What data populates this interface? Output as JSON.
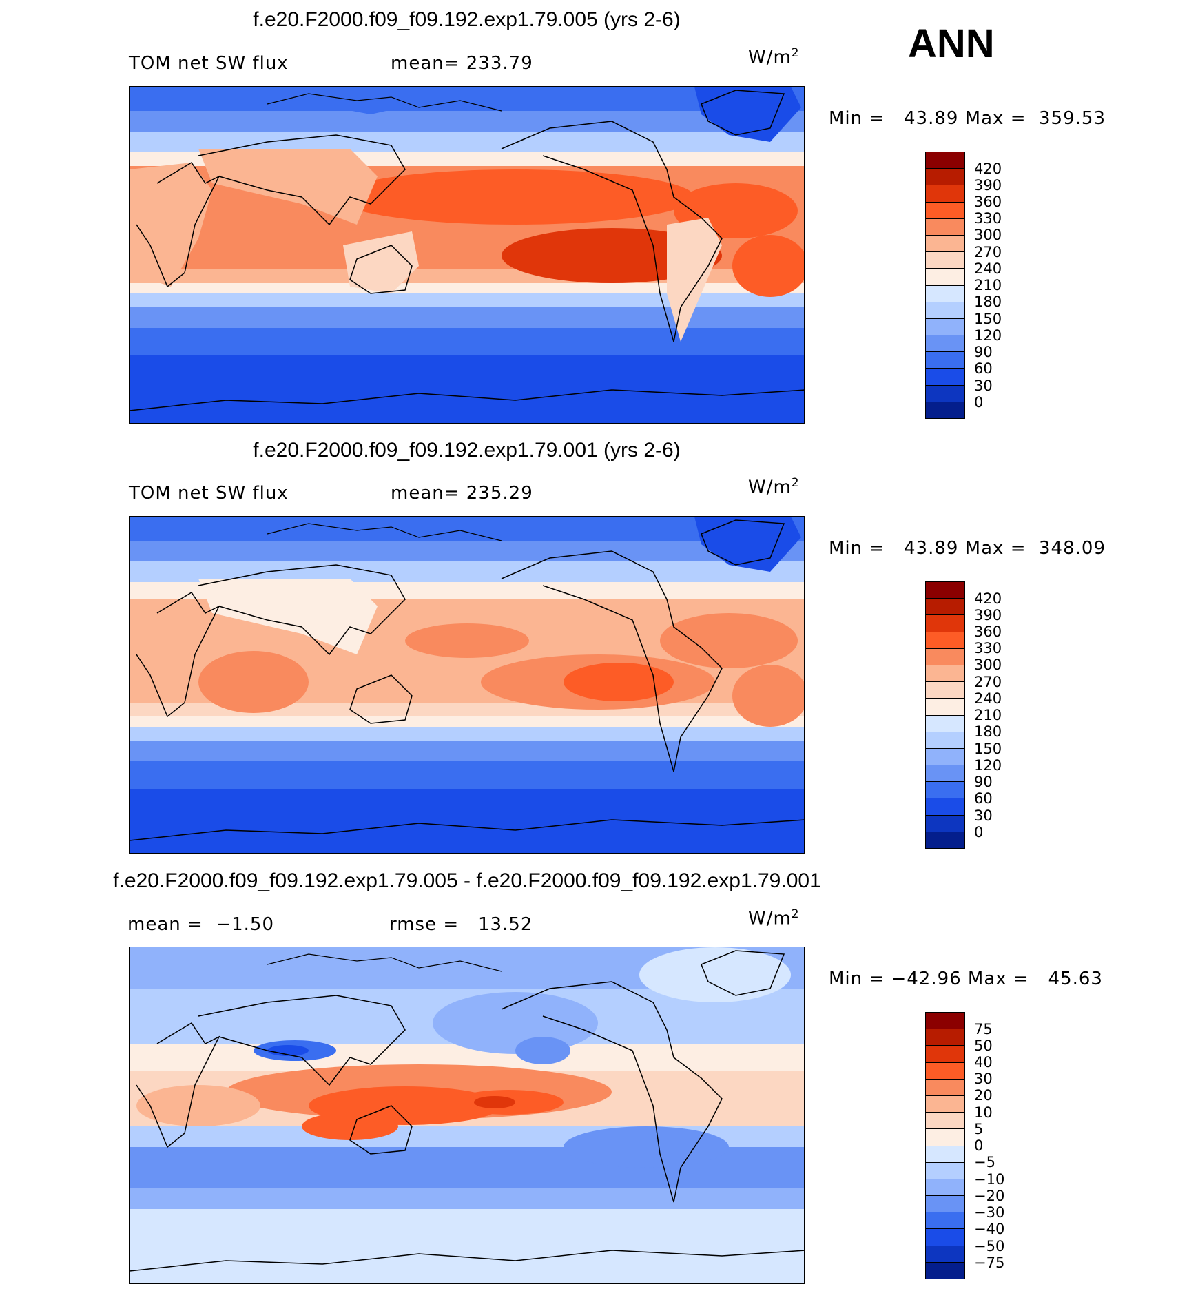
{
  "season": "ANN",
  "units_base": "W/m",
  "units_exp": "2",
  "panels": [
    {
      "title": "f.e20.F2000.f09_f09.192.exp1.79.005 (yrs 2-6)",
      "left_label": "TOM net SW flux",
      "stat_label": "mean= 233.79",
      "minmax": "Min =   43.89 Max =  359.53",
      "levels": [
        "420",
        "390",
        "360",
        "330",
        "300",
        "270",
        "240",
        "210",
        "180",
        "150",
        "120",
        "90",
        "60",
        "30",
        "0"
      ],
      "colors": [
        "#8b0000",
        "#b71c00",
        "#e0360a",
        "#fd5c26",
        "#f98a5e",
        "#fbb592",
        "#fcd7c2",
        "#fdeee3",
        "#d6e7ff",
        "#b4cfff",
        "#90b2fb",
        "#6993f5",
        "#3a6ef0",
        "#1a4ce8",
        "#0d36c0",
        "#041e8c"
      ]
    },
    {
      "title": "f.e20.F2000.f09_f09.192.exp1.79.001 (yrs 2-6)",
      "left_label": "TOM net SW flux",
      "stat_label": "mean= 235.29",
      "minmax": "Min =   43.89 Max =  348.09",
      "levels": [
        "420",
        "390",
        "360",
        "330",
        "300",
        "270",
        "240",
        "210",
        "180",
        "150",
        "120",
        "90",
        "60",
        "30",
        "0"
      ],
      "colors": [
        "#8b0000",
        "#b71c00",
        "#e0360a",
        "#fd5c26",
        "#f98a5e",
        "#fbb592",
        "#fcd7c2",
        "#fdeee3",
        "#d6e7ff",
        "#b4cfff",
        "#90b2fb",
        "#6993f5",
        "#3a6ef0",
        "#1a4ce8",
        "#0d36c0",
        "#041e8c"
      ]
    },
    {
      "title": "f.e20.F2000.f09_f09.192.exp1.79.005 - f.e20.F2000.f09_f09.192.exp1.79.001",
      "left_label": "mean =  −1.50",
      "stat_label": "rmse =   13.52",
      "minmax": "Min = −42.96 Max =   45.63",
      "levels": [
        "75",
        "50",
        "40",
        "30",
        "20",
        "10",
        "5",
        "0",
        "−5",
        "−10",
        "−20",
        "−30",
        "−40",
        "−50",
        "−75"
      ],
      "colors": [
        "#8b0000",
        "#b71c00",
        "#e0360a",
        "#fd5c26",
        "#f98a5e",
        "#fbb592",
        "#fcd7c2",
        "#fdeee3",
        "#d6e7ff",
        "#b4cfff",
        "#90b2fb",
        "#6993f5",
        "#3a6ef0",
        "#1a4ce8",
        "#0d36c0",
        "#041e8c"
      ]
    }
  ]
}
